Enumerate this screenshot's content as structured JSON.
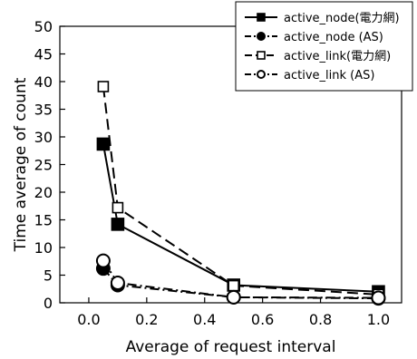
{
  "chart_data": {
    "type": "line",
    "title": "",
    "xlabel": "Average of request interval",
    "ylabel": "Time average of count",
    "xlim": [
      -0.1,
      1.08
    ],
    "ylim": [
      0,
      50
    ],
    "xticks": [
      0.0,
      0.2,
      0.4,
      0.6,
      0.8,
      1.0
    ],
    "xtick_labels": [
      "0.0",
      "0.2",
      "0.4",
      "0.6",
      "0.8",
      "1.0"
    ],
    "yticks": [
      0,
      5,
      10,
      15,
      20,
      25,
      30,
      35,
      40,
      45,
      50
    ],
    "ytick_labels": [
      "0",
      "5",
      "10",
      "15",
      "20",
      "25",
      "30",
      "35",
      "40",
      "45",
      "50"
    ],
    "grid": false,
    "legend_position": "top-right",
    "series": [
      {
        "name": "active_node(電力網)",
        "line_style": "solid",
        "marker": "filled-square",
        "color": "#000000",
        "x": [
          0.05,
          0.1,
          0.5,
          1.0
        ],
        "y": [
          28.7,
          14.2,
          3.2,
          2.0
        ]
      },
      {
        "name": "active_node (AS)",
        "line_style": "dash-dot",
        "marker": "filled-circle",
        "color": "#000000",
        "x": [
          0.05,
          0.1,
          0.5,
          1.0
        ],
        "y": [
          6.2,
          3.2,
          1.0,
          0.8
        ]
      },
      {
        "name": "active_link(電力網)",
        "line_style": "dashed",
        "marker": "open-square",
        "color": "#000000",
        "x": [
          0.05,
          0.1,
          0.5,
          1.0
        ],
        "y": [
          39.1,
          17.2,
          3.1,
          1.5
        ]
      },
      {
        "name": "active_link (AS)",
        "line_style": "dash-dot",
        "marker": "open-circle",
        "color": "#000000",
        "x": [
          0.05,
          0.1,
          0.5,
          1.0
        ],
        "y": [
          7.6,
          3.6,
          1.0,
          0.9
        ]
      }
    ]
  }
}
